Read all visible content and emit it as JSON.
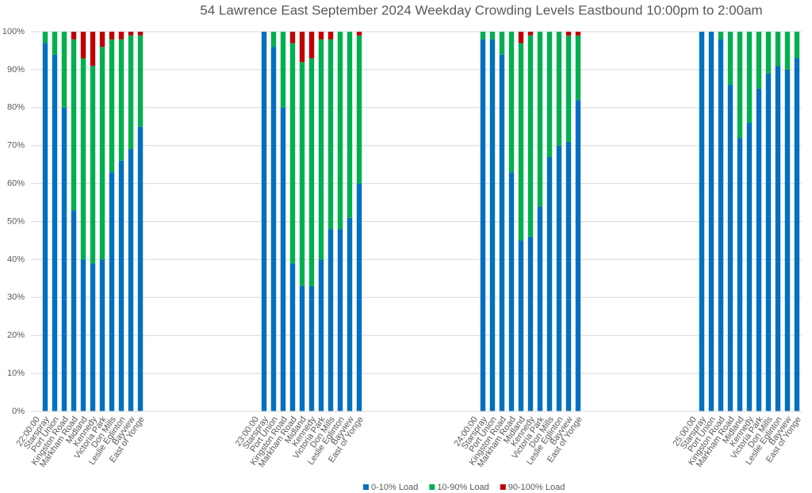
{
  "chart_data": {
    "type": "stacked_bar",
    "title": "54 Lawrence East September 2024  Weekday Crowding Levels Eastbound 10:00pm to 2:00am",
    "categories": [
      "22:00:00",
      "Starspray",
      "Port Union",
      "Kingston Road",
      "Markham Road",
      "Midland",
      "Kennedy",
      "Victoria Park",
      "Don Mills",
      "Leslie Eglinton",
      "Bayview",
      "East of Yonge",
      null,
      null,
      null,
      null,
      null,
      null,
      null,
      null,
      null,
      null,
      null,
      "23:00:00",
      "Starspray",
      "Port Union",
      "Kingston Road",
      "Markham Road",
      "Midland",
      "Kennedy",
      "Victoria Park",
      "Don Mills",
      "Leslie Eglinton",
      "Bayview",
      "East of Yonge",
      null,
      null,
      null,
      null,
      null,
      null,
      null,
      null,
      null,
      null,
      null,
      "24:00:00",
      "Starspray",
      "Port Union",
      "Kingston Road",
      "Markham Road",
      "Midland",
      "Kennedy",
      "Victoria Park",
      "Don Mills",
      "Leslie Eglinton",
      "Bayview",
      "East of Yonge",
      null,
      null,
      null,
      null,
      null,
      null,
      null,
      null,
      null,
      null,
      null,
      "25:00:00",
      "Starspray",
      "Port Union",
      "Kingston Road",
      "Markham Road",
      "Midland",
      "Kennedy",
      "Victoria Park",
      "Don Mills",
      "Leslie Eglinton",
      "Bayview",
      "East of Yonge"
    ],
    "series": [
      {
        "name": "0-10% Load",
        "color": "#0070c0",
        "values": [
          null,
          97,
          94,
          80,
          53,
          40,
          39,
          40,
          63,
          66,
          69,
          75,
          null,
          null,
          null,
          null,
          null,
          null,
          null,
          null,
          null,
          null,
          null,
          null,
          100,
          96,
          80,
          39,
          33,
          33,
          40,
          48,
          48,
          51,
          60,
          null,
          null,
          null,
          null,
          null,
          null,
          null,
          null,
          null,
          null,
          null,
          null,
          98,
          98,
          94,
          63,
          45,
          46,
          54,
          67,
          70,
          71,
          82,
          null,
          null,
          null,
          null,
          null,
          null,
          null,
          null,
          null,
          null,
          null,
          null,
          100,
          100,
          98,
          86,
          72,
          76,
          85,
          89,
          91,
          90,
          93
        ]
      },
      {
        "name": "10-90% Load",
        "color": "#00b050",
        "values": [
          null,
          3,
          6,
          20,
          45,
          53,
          52,
          56,
          35,
          32,
          30,
          24,
          null,
          null,
          null,
          null,
          null,
          null,
          null,
          null,
          null,
          null,
          null,
          null,
          0,
          4,
          20,
          58,
          59,
          60,
          58,
          50,
          52,
          49,
          39,
          null,
          null,
          null,
          null,
          null,
          null,
          null,
          null,
          null,
          null,
          null,
          null,
          2,
          2,
          6,
          37,
          52,
          53,
          46,
          33,
          30,
          28,
          17,
          null,
          null,
          null,
          null,
          null,
          null,
          null,
          null,
          null,
          null,
          null,
          null,
          0,
          0,
          2,
          14,
          28,
          24,
          15,
          11,
          9,
          10,
          7
        ]
      },
      {
        "name": "90-100% Load",
        "color": "#c00000",
        "values": [
          null,
          0,
          0,
          0,
          2,
          7,
          9,
          4,
          2,
          2,
          1,
          1,
          null,
          null,
          null,
          null,
          null,
          null,
          null,
          null,
          null,
          null,
          null,
          null,
          0,
          0,
          0,
          3,
          8,
          7,
          2,
          2,
          0,
          0,
          1,
          null,
          null,
          null,
          null,
          null,
          null,
          null,
          null,
          null,
          null,
          null,
          null,
          0,
          0,
          0,
          0,
          3,
          1,
          0,
          0,
          0,
          1,
          1,
          null,
          null,
          null,
          null,
          null,
          null,
          null,
          null,
          null,
          null,
          null,
          null,
          0,
          0,
          0,
          0,
          0,
          0,
          0,
          0,
          0,
          0,
          0
        ]
      }
    ],
    "ylim": [
      0,
      100
    ],
    "yticks": [
      {
        "value": 0,
        "label": "0%"
      },
      {
        "value": 10,
        "label": "10%"
      },
      {
        "value": 20,
        "label": "20%"
      },
      {
        "value": 30,
        "label": "30%"
      },
      {
        "value": 40,
        "label": "40%"
      },
      {
        "value": 50,
        "label": "50%"
      },
      {
        "value": 60,
        "label": "60%"
      },
      {
        "value": 70,
        "label": "70%"
      },
      {
        "value": 80,
        "label": "80%"
      },
      {
        "value": 90,
        "label": "90%"
      },
      {
        "value": 100,
        "label": "100%"
      }
    ],
    "grid": true,
    "legend": "bottom"
  }
}
